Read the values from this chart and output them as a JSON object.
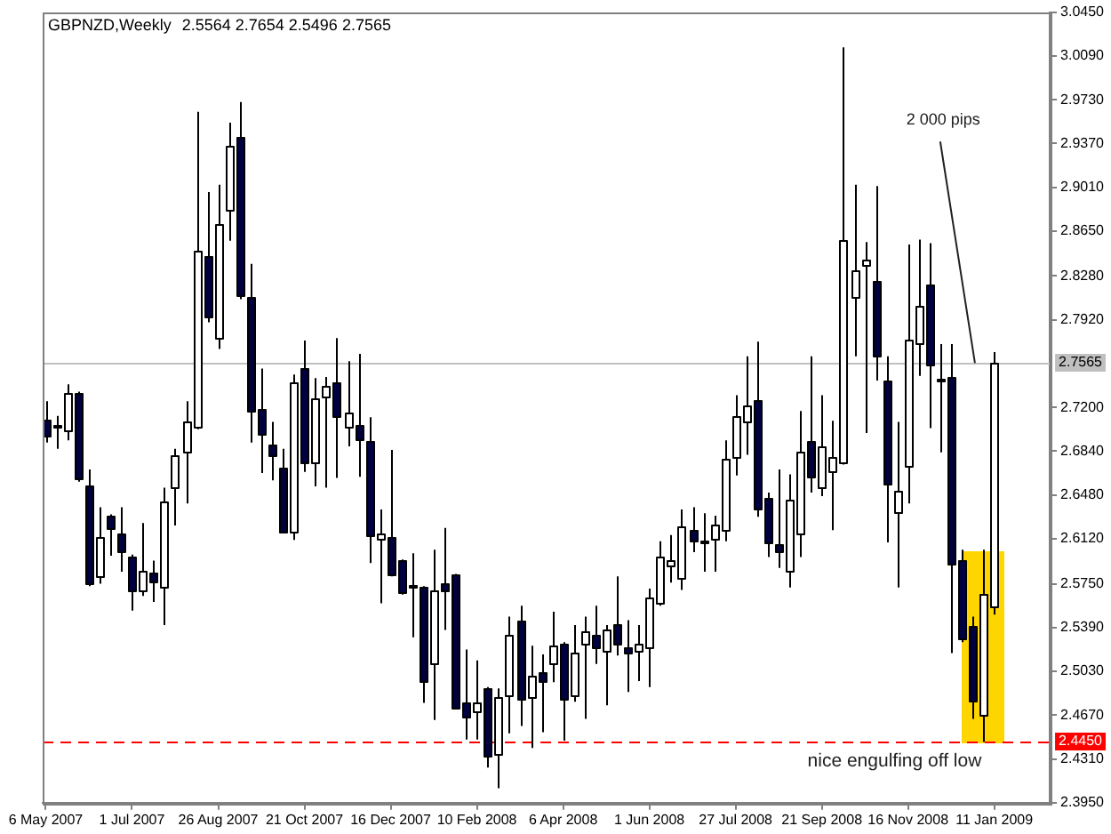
{
  "chart_data": {
    "type": "candlestick",
    "title": "GBPNZD,Weekly",
    "subtitle": "2.5564 2.7654 2.5496 2.7565",
    "x": [
      "2007-05-06",
      "2007-05-13",
      "2007-05-20",
      "2007-05-27",
      "2007-06-03",
      "2007-06-10",
      "2007-06-17",
      "2007-06-24",
      "2007-07-01",
      "2007-07-08",
      "2007-07-15",
      "2007-07-22",
      "2007-07-29",
      "2007-08-05",
      "2007-08-12",
      "2007-08-19",
      "2007-08-26",
      "2007-09-02",
      "2007-09-09",
      "2007-09-16",
      "2007-09-23",
      "2007-09-30",
      "2007-10-07",
      "2007-10-14",
      "2007-10-21",
      "2007-10-28",
      "2007-11-04",
      "2007-11-11",
      "2007-11-18",
      "2007-11-25",
      "2007-12-02",
      "2007-12-09",
      "2007-12-16",
      "2007-12-23",
      "2007-12-30",
      "2008-01-06",
      "2008-01-13",
      "2008-01-20",
      "2008-01-27",
      "2008-02-03",
      "2008-02-10",
      "2008-02-17",
      "2008-02-24",
      "2008-03-02",
      "2008-03-09",
      "2008-03-16",
      "2008-03-23",
      "2008-03-30",
      "2008-04-06",
      "2008-04-13",
      "2008-04-20",
      "2008-04-27",
      "2008-05-04",
      "2008-05-11",
      "2008-05-18",
      "2008-05-25",
      "2008-06-01",
      "2008-06-08",
      "2008-06-15",
      "2008-06-22",
      "2008-06-29",
      "2008-07-06",
      "2008-07-13",
      "2008-07-20",
      "2008-07-27",
      "2008-08-03",
      "2008-08-10",
      "2008-08-17",
      "2008-08-24",
      "2008-08-31",
      "2008-09-07",
      "2008-09-14",
      "2008-09-21",
      "2008-09-28",
      "2008-10-05",
      "2008-10-12",
      "2008-10-19",
      "2008-10-26",
      "2008-11-02",
      "2008-11-09",
      "2008-11-16",
      "2008-11-23",
      "2008-11-30",
      "2008-12-07",
      "2008-12-14",
      "2008-12-21",
      "2008-12-28",
      "2009-01-04",
      "2009-01-11"
    ],
    "ohlc": [
      [
        2.71,
        2.725,
        2.691,
        2.697
      ],
      [
        2.704,
        2.713,
        2.686,
        2.706
      ],
      [
        2.701,
        2.739,
        2.693,
        2.732
      ],
      [
        2.732,
        2.733,
        2.659,
        2.662
      ],
      [
        2.656,
        2.669,
        2.573,
        2.575
      ],
      [
        2.582,
        2.638,
        2.575,
        2.614
      ],
      [
        2.631,
        2.632,
        2.598,
        2.621
      ],
      [
        2.617,
        2.638,
        2.585,
        2.602
      ],
      [
        2.598,
        2.599,
        2.553,
        2.57
      ],
      [
        2.57,
        2.625,
        2.565,
        2.586
      ],
      [
        2.584,
        2.594,
        2.56,
        2.576
      ],
      [
        2.573,
        2.654,
        2.541,
        2.643
      ],
      [
        2.654,
        2.686,
        2.623,
        2.681
      ],
      [
        2.684,
        2.725,
        2.641,
        2.709
      ],
      [
        2.704,
        2.963,
        2.702,
        2.849
      ],
      [
        2.845,
        2.897,
        2.79,
        2.796
      ],
      [
        2.778,
        2.903,
        2.768,
        2.871
      ],
      [
        2.882,
        2.954,
        2.857,
        2.935
      ],
      [
        2.943,
        2.971,
        2.809,
        2.813
      ],
      [
        2.811,
        2.838,
        2.691,
        2.717
      ],
      [
        2.718,
        2.752,
        2.666,
        2.698
      ],
      [
        2.689,
        2.708,
        2.66,
        2.68
      ],
      [
        2.671,
        2.686,
        2.618,
        2.619
      ],
      [
        2.617,
        2.747,
        2.611,
        2.74
      ],
      [
        2.753,
        2.775,
        2.667,
        2.675
      ],
      [
        2.676,
        2.744,
        2.655,
        2.728
      ],
      [
        2.728,
        2.745,
        2.654,
        2.737
      ],
      [
        2.741,
        2.777,
        2.662,
        2.713
      ],
      [
        2.704,
        2.758,
        2.688,
        2.716
      ],
      [
        2.705,
        2.764,
        2.663,
        2.694
      ],
      [
        2.693,
        2.712,
        2.592,
        2.616
      ],
      [
        2.612,
        2.636,
        2.559,
        2.616
      ],
      [
        2.613,
        2.685,
        2.581,
        2.583
      ],
      [
        2.594,
        2.595,
        2.566,
        2.568
      ],
      [
        2.574,
        2.6,
        2.531,
        2.573
      ],
      [
        2.573,
        2.573,
        2.477,
        2.496
      ],
      [
        2.509,
        2.603,
        2.463,
        2.569
      ],
      [
        2.576,
        2.621,
        2.537,
        2.57
      ],
      [
        2.582,
        2.583,
        2.472,
        2.473
      ],
      [
        2.478,
        2.521,
        2.447,
        2.467
      ],
      [
        2.471,
        2.512,
        2.447,
        2.478
      ],
      [
        2.489,
        2.49,
        2.424,
        2.433
      ],
      [
        2.435,
        2.489,
        2.407,
        2.482
      ],
      [
        2.484,
        2.548,
        2.452,
        2.533
      ],
      [
        2.545,
        2.557,
        2.458,
        2.481
      ],
      [
        2.482,
        2.524,
        2.44,
        2.5
      ],
      [
        2.503,
        2.517,
        2.453,
        2.495
      ],
      [
        2.509,
        2.552,
        2.494,
        2.524
      ],
      [
        2.525,
        2.527,
        2.446,
        2.48
      ],
      [
        2.484,
        2.541,
        2.478,
        2.519
      ],
      [
        2.526,
        2.548,
        2.464,
        2.536
      ],
      [
        2.533,
        2.557,
        2.509,
        2.523
      ],
      [
        2.521,
        2.541,
        2.475,
        2.538
      ],
      [
        2.542,
        2.581,
        2.516,
        2.526
      ],
      [
        2.523,
        2.545,
        2.486,
        2.518
      ],
      [
        2.52,
        2.541,
        2.495,
        2.526
      ],
      [
        2.523,
        2.571,
        2.49,
        2.564
      ],
      [
        2.56,
        2.61,
        2.557,
        2.598
      ],
      [
        2.589,
        2.615,
        2.576,
        2.594
      ],
      [
        2.58,
        2.636,
        2.57,
        2.622
      ],
      [
        2.619,
        2.638,
        2.601,
        2.61
      ],
      [
        2.611,
        2.633,
        2.585,
        2.609
      ],
      [
        2.611,
        2.631,
        2.585,
        2.623
      ],
      [
        2.62,
        2.693,
        2.61,
        2.678
      ],
      [
        2.679,
        2.73,
        2.664,
        2.713
      ],
      [
        2.708,
        2.762,
        2.681,
        2.721
      ],
      [
        2.726,
        2.774,
        2.63,
        2.637
      ],
      [
        2.645,
        2.65,
        2.597,
        2.609
      ],
      [
        2.608,
        2.669,
        2.588,
        2.602
      ],
      [
        2.586,
        2.665,
        2.572,
        2.644
      ],
      [
        2.617,
        2.717,
        2.597,
        2.684
      ],
      [
        2.693,
        2.762,
        2.65,
        2.664
      ],
      [
        2.654,
        2.73,
        2.647,
        2.688
      ],
      [
        2.668,
        2.709,
        2.619,
        2.679
      ],
      [
        2.674,
        3.016,
        2.673,
        2.857
      ],
      [
        2.811,
        2.903,
        2.762,
        2.833
      ],
      [
        2.838,
        2.856,
        2.699,
        2.842
      ],
      [
        2.824,
        2.902,
        2.742,
        2.762
      ],
      [
        2.742,
        2.762,
        2.609,
        2.657
      ],
      [
        2.633,
        2.708,
        2.572,
        2.651
      ],
      [
        2.671,
        2.854,
        2.641,
        2.775
      ],
      [
        2.774,
        2.858,
        2.746,
        2.804
      ],
      [
        2.821,
        2.855,
        2.703,
        2.755
      ],
      [
        2.744,
        2.772,
        2.683,
        2.743
      ],
      [
        2.745,
        2.772,
        2.518,
        2.591
      ],
      [
        2.594,
        2.603,
        2.527,
        2.529
      ],
      [
        2.54,
        2.548,
        2.464,
        2.478
      ],
      [
        2.468,
        2.603,
        2.445,
        2.567
      ],
      [
        2.5564,
        2.7654,
        2.5496,
        2.7565
      ]
    ],
    "colors": [
      "#000040",
      "#ffffff",
      "#ffffff",
      "#000040",
      "#000040",
      "#ffffff",
      "#000040",
      "#000040",
      "#000040",
      "#ffffff",
      "#000040",
      "#ffffff",
      "#ffffff",
      "#ffffff",
      "#ffffff",
      "#000040",
      "#ffffff",
      "#ffffff",
      "#000040",
      "#000040",
      "#000040",
      "#000040",
      "#000040",
      "#ffffff",
      "#000040",
      "#ffffff",
      "#ffffff",
      "#000040",
      "#ffffff",
      "#000040",
      "#000040",
      "#ffffff",
      "#000040",
      "#000040",
      "#000040",
      "#000040",
      "#ffffff",
      "#000040",
      "#000040",
      "#000040",
      "#ffffff",
      "#000040",
      "#ffffff",
      "#ffffff",
      "#000040",
      "#ffffff",
      "#000040",
      "#ffffff",
      "#000040",
      "#ffffff",
      "#ffffff",
      "#000040",
      "#ffffff",
      "#000040",
      "#000040",
      "#ffffff",
      "#ffffff",
      "#ffffff",
      "#ffffff",
      "#ffffff",
      "#000040",
      "#000040",
      "#ffffff",
      "#ffffff",
      "#ffffff",
      "#ffffff",
      "#000040",
      "#000040",
      "#000040",
      "#ffffff",
      "#ffffff",
      "#000040",
      "#ffffff",
      "#ffffff",
      "#ffffff",
      "#ffffff",
      "#ffffff",
      "#000040",
      "#000040",
      "#ffffff",
      "#ffffff",
      "#ffffff",
      "#000040",
      "#000040",
      "#000040",
      "#000040",
      "#000040",
      "#ffffff",
      "#ffffff"
    ],
    "xlim": [
      "2007-05-04",
      "2009-02-16"
    ],
    "xticks": [
      {
        "value": "2007-05-06",
        "label": "6 May 2007"
      },
      {
        "value": "2007-07-01",
        "label": "1 Jul 2007"
      },
      {
        "value": "2007-08-26",
        "label": "26 Aug 2007"
      },
      {
        "value": "2007-10-21",
        "label": "21 Oct 2007"
      },
      {
        "value": "2007-12-16",
        "label": "16 Dec 2007"
      },
      {
        "value": "2008-02-10",
        "label": "10 Feb 2008"
      },
      {
        "value": "2008-04-06",
        "label": "6 Apr 2008"
      },
      {
        "value": "2008-06-01",
        "label": "1 Jun 2008"
      },
      {
        "value": "2008-07-27",
        "label": "27 Jul 2008"
      },
      {
        "value": "2008-09-21",
        "label": "21 Sep 2008"
      },
      {
        "value": "2008-11-16",
        "label": "16 Nov 2008"
      },
      {
        "value": "2009-01-11",
        "label": "11 Jan 2009"
      }
    ],
    "ylim": [
      2.395,
      3.045
    ],
    "yticks": [
      {
        "value": 3.045,
        "label": "3.0450"
      },
      {
        "value": 3.009,
        "label": "3.0090"
      },
      {
        "value": 2.973,
        "label": "2.9730"
      },
      {
        "value": 2.937,
        "label": "2.9370"
      },
      {
        "value": 2.901,
        "label": "2.9010"
      },
      {
        "value": 2.865,
        "label": "2.8650"
      },
      {
        "value": 2.828,
        "label": "2.8280"
      },
      {
        "value": 2.792,
        "label": "2.7920"
      },
      {
        "value": 2.72,
        "label": "2.7200"
      },
      {
        "value": 2.684,
        "label": "2.6840"
      },
      {
        "value": 2.648,
        "label": "2.6480"
      },
      {
        "value": 2.612,
        "label": "2.6120"
      },
      {
        "value": 2.575,
        "label": "2.5750"
      },
      {
        "value": 2.539,
        "label": "2.5390"
      },
      {
        "value": 2.503,
        "label": "2.5030"
      },
      {
        "value": 2.467,
        "label": "2.4670"
      },
      {
        "value": 2.431,
        "label": "2.4310"
      },
      {
        "value": 2.395,
        "label": "2.3950"
      }
    ],
    "ref_lines": [
      {
        "axis": "y",
        "value": 2.7565,
        "label": "2.7565",
        "color": "#c0c0c0"
      },
      {
        "axis": "y",
        "value": 2.445,
        "label": "2.4450",
        "color": "#ff0000",
        "line_style": "dashed"
      }
    ],
    "annotations": [
      {
        "text": "2 000 pips",
        "x": "2008-12-29",
        "y": 2.7565
      },
      "nice engulfing off low"
    ]
  }
}
